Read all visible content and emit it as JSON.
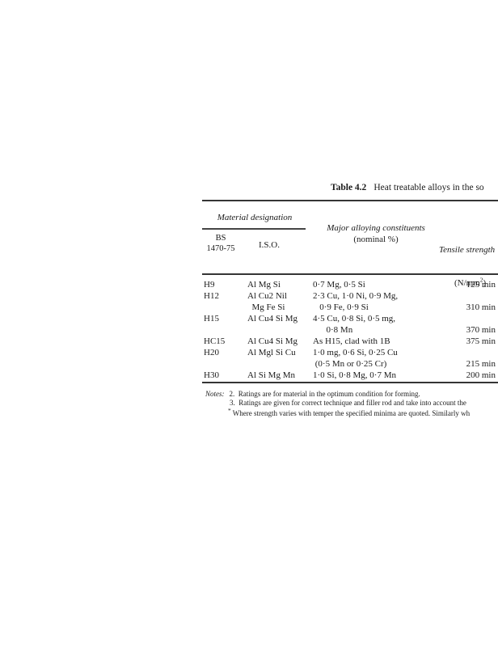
{
  "caption": {
    "label": "Table 4.2",
    "text": "Heat treatable alloys in the so"
  },
  "table": {
    "header": {
      "material_designation": "Material designation",
      "bs_line1": "BS",
      "bs_line2": "1470-75",
      "iso": "I.S.O.",
      "constituents_line1": "Major alloying constituents",
      "constituents_line2": "(nominal %)",
      "tensile_line1": "Tensile strength",
      "tensile_line2_pre": "(N/mm",
      "tensile_line2_sup": "2",
      "tensile_line2_post": ")"
    },
    "rows": [
      [
        "H9",
        "Al Mg Si",
        "0·7 Mg, 0·5 Si",
        "125 min"
      ],
      [
        "H12",
        "Al Cu2 Nil",
        "2·3 Cu, 1·0 Ni, 0·9 Mg,",
        ""
      ],
      [
        "",
        "  Mg Fe Si",
        "   0·9 Fe, 0·9 Si",
        "310 min"
      ],
      [
        "H15",
        "Al Cu4 Si Mg",
        "4·5 Cu, 0·8 Si, 0·5 mg,",
        ""
      ],
      [
        "",
        "",
        "      0·8 Mn",
        "370 min"
      ],
      [
        "HC15",
        "Al Cu4 Si Mg",
        "As H15, clad with 1B",
        "375 min"
      ],
      [
        "H20",
        "Al Mgl Si Cu",
        "1·0 mg, 0·6 Si, 0·25 Cu",
        ""
      ],
      [
        "",
        "",
        " (0·5 Mn or 0·25 Cr)",
        "215 min"
      ],
      [
        "H30",
        "Al Si Mg Mn",
        "1·0 Si, 0·8 Mg, 0·7 Mn",
        "200 min"
      ]
    ]
  },
  "notes": {
    "label": "Notes:",
    "star": "*",
    "items": [
      "2.  Ratings are for material in the optimum condition for forming.",
      "3.  Ratings are given for correct technique and filler rod and take into account the",
      "Where strength varies with temper the specified minima are quoted. Similarly wh"
    ]
  }
}
